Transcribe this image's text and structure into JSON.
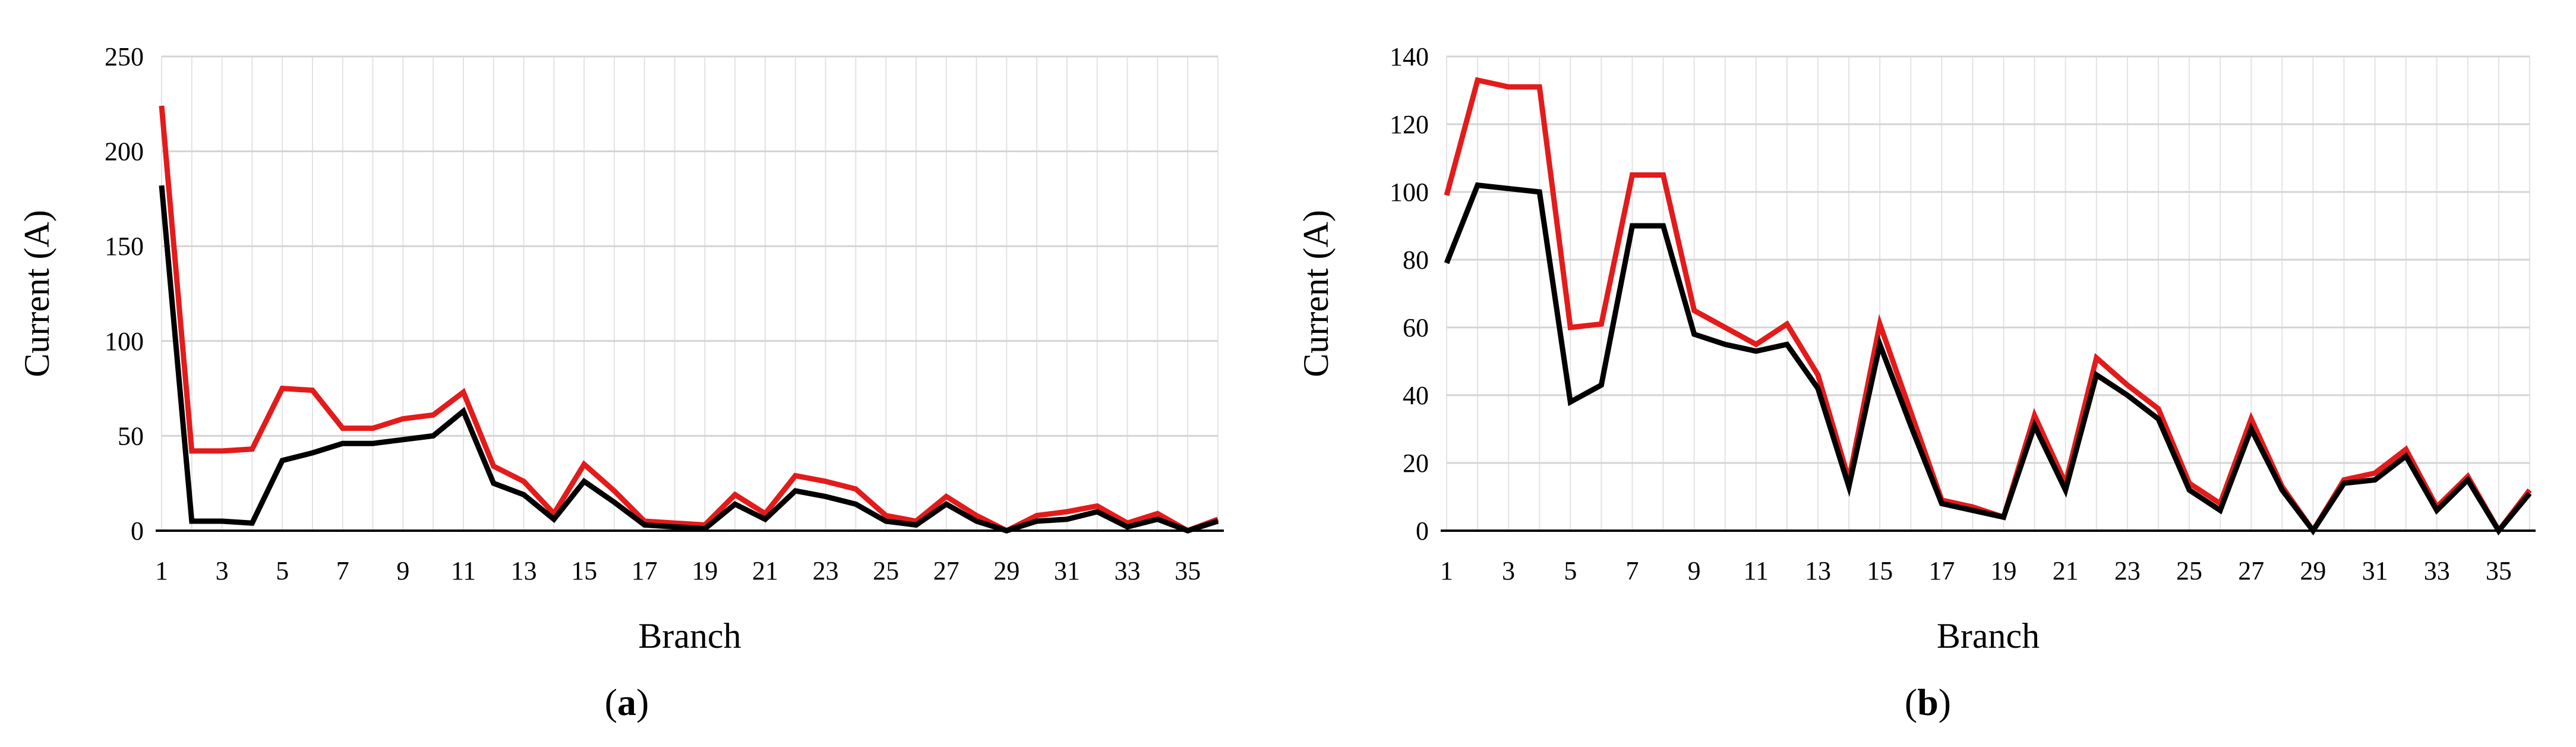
{
  "chart_data": [
    {
      "type": "line",
      "panel_label": "a",
      "xlabel": "Branch",
      "ylabel": "Current (A)",
      "ylim": [
        0,
        250
      ],
      "yticks": [
        0,
        50,
        100,
        150,
        200,
        250
      ],
      "x": [
        1,
        2,
        3,
        4,
        5,
        6,
        7,
        8,
        9,
        10,
        11,
        12,
        13,
        14,
        15,
        16,
        17,
        18,
        19,
        20,
        21,
        22,
        23,
        24,
        25,
        26,
        27,
        28,
        29,
        30,
        31,
        32,
        33,
        34,
        35,
        36
      ],
      "xtick_labels": [
        "1",
        "3",
        "5",
        "7",
        "9",
        "11",
        "13",
        "15",
        "17",
        "19",
        "21",
        "23",
        "25",
        "27",
        "29",
        "31",
        "33",
        "35"
      ],
      "grid": "vertical and horizontal",
      "series": [
        {
          "color": "#000000",
          "values": [
            182,
            5,
            5,
            4,
            37,
            41,
            46,
            46,
            48,
            50,
            63,
            25,
            19,
            6,
            26,
            15,
            3,
            2,
            1,
            14,
            6,
            21,
            18,
            14,
            5,
            3,
            14,
            5,
            0,
            5,
            6,
            10,
            2,
            6,
            0,
            5
          ]
        },
        {
          "color": "#e31b1b",
          "values": [
            224,
            42,
            42,
            43,
            75,
            74,
            54,
            54,
            59,
            61,
            73,
            34,
            26,
            9,
            35,
            21,
            5,
            4,
            3,
            19,
            9,
            29,
            26,
            22,
            8,
            5,
            18,
            8,
            0,
            8,
            10,
            13,
            4,
            9,
            0,
            6
          ]
        }
      ]
    },
    {
      "type": "line",
      "panel_label": "b",
      "xlabel": "Branch",
      "ylabel": "Current (A)",
      "ylim": [
        0,
        140
      ],
      "yticks": [
        0,
        20,
        40,
        60,
        80,
        100,
        120,
        140
      ],
      "x": [
        1,
        2,
        3,
        4,
        5,
        6,
        7,
        8,
        9,
        10,
        11,
        12,
        13,
        14,
        15,
        16,
        17,
        18,
        19,
        20,
        21,
        22,
        23,
        24,
        25,
        26,
        27,
        28,
        29,
        30,
        31,
        32,
        33,
        34,
        35,
        36
      ],
      "xtick_labels": [
        "1",
        "3",
        "5",
        "7",
        "9",
        "11",
        "13",
        "15",
        "17",
        "19",
        "21",
        "23",
        "25",
        "27",
        "29",
        "31",
        "33",
        "35"
      ],
      "grid": "vertical and horizontal",
      "series": [
        {
          "color": "#000000",
          "values": [
            79,
            102,
            101,
            100,
            38,
            43,
            90,
            90,
            58,
            55,
            53,
            55,
            42,
            13,
            55,
            31,
            8,
            6,
            4,
            31,
            12,
            46,
            40,
            33,
            12,
            6,
            30,
            12,
            0,
            14,
            15,
            22,
            6,
            15,
            0,
            11
          ]
        },
        {
          "color": "#e31b1b",
          "values": [
            99,
            133,
            131,
            131,
            60,
            61,
            105,
            105,
            65,
            60,
            55,
            61,
            46,
            15,
            61,
            35,
            9,
            7,
            4,
            34,
            14,
            51,
            43,
            36,
            14,
            8,
            33,
            13,
            0,
            15,
            17,
            24,
            7,
            16,
            0,
            12
          ]
        }
      ]
    }
  ]
}
